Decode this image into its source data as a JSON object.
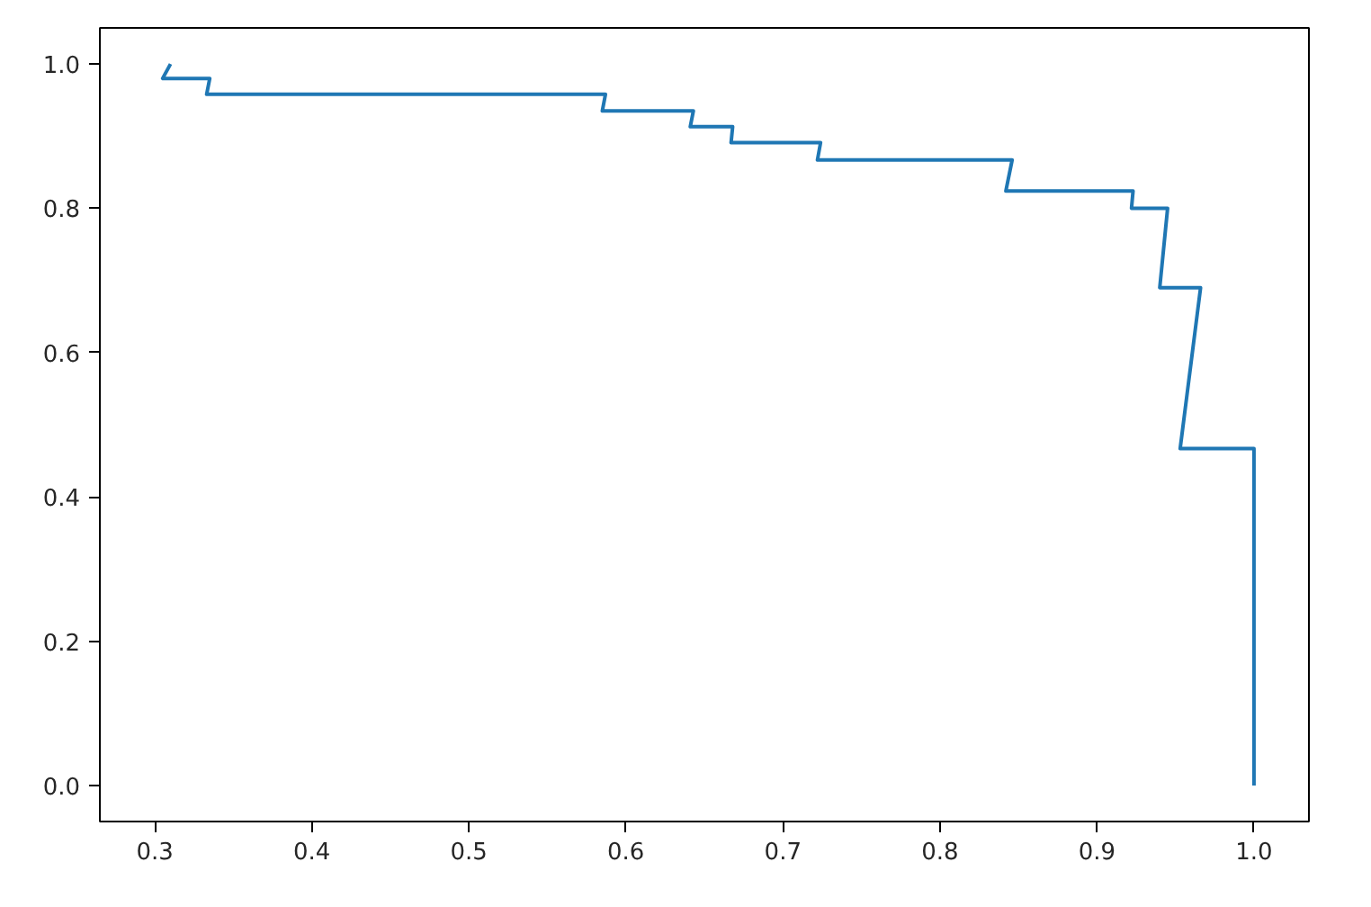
{
  "chart_data": {
    "type": "line",
    "x": [
      0.31,
      0.305,
      0.335,
      0.333,
      0.587,
      0.585,
      0.643,
      0.641,
      0.668,
      0.667,
      0.724,
      0.722,
      0.846,
      0.842,
      0.923,
      0.922,
      0.945,
      0.94,
      0.966,
      0.953,
      1.0,
      1.0
    ],
    "series": [
      {
        "color": "#1f77b4",
        "values": [
          1.0,
          0.98,
          0.98,
          0.958,
          0.958,
          0.935,
          0.935,
          0.913,
          0.913,
          0.891,
          0.891,
          0.867,
          0.867,
          0.824,
          0.824,
          0.8,
          0.8,
          0.69,
          0.69,
          0.467,
          0.467,
          0.0
        ]
      }
    ],
    "xlim": [
      0.265,
      1.035
    ],
    "ylim": [
      -0.05,
      1.05
    ],
    "xticks": [
      0.3,
      0.4,
      0.5,
      0.6,
      0.7,
      0.8,
      0.9,
      {
        "value": 1.0,
        "label": "1.0"
      }
    ],
    "yticks": [
      {
        "value": 0.0,
        "label": "0.0"
      },
      0.2,
      0.4,
      0.6,
      0.8,
      {
        "value": 1.0,
        "label": "1.0"
      }
    ],
    "grid": false,
    "marker": "none",
    "line_style": "solid"
  }
}
